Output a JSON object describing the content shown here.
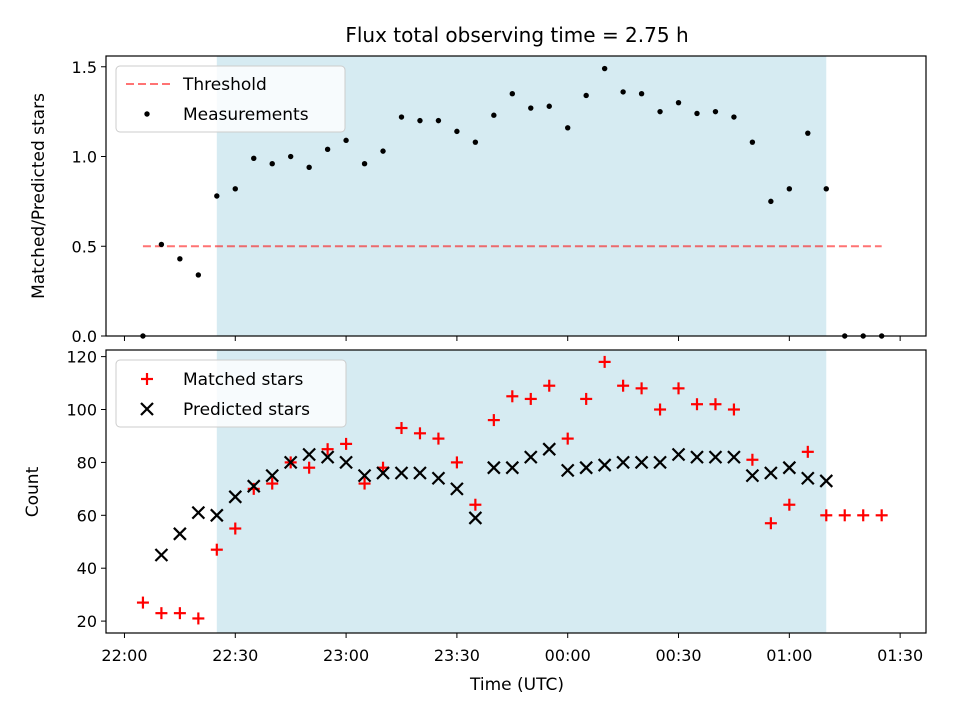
{
  "chart_data": [
    {
      "type": "scatter",
      "title": "Flux total observing time = 2.75 h",
      "ylabel": "Matched/Predicted stars",
      "xlabel": "",
      "ylim": [
        0,
        1.56
      ],
      "yticks": [
        0.0,
        0.5,
        1.0,
        1.5
      ],
      "ytick_labels": [
        "0.0",
        "0.5",
        "1.0",
        "1.5"
      ],
      "x_unit": "minutes after 22:00 UTC",
      "xlim": [
        -5,
        217
      ],
      "xticks": [
        0,
        30,
        60,
        90,
        120,
        150,
        180,
        210
      ],
      "grid": false,
      "legend_placement": "top-left",
      "shaded_interval": {
        "start": 25,
        "end": 190,
        "color": "#add8e6"
      },
      "threshold": {
        "name": "Threshold",
        "value": 0.5,
        "x_start": 5,
        "x_end": 205,
        "color": "#ff6b6b"
      },
      "series": [
        {
          "name": "Measurements",
          "color": "#000000",
          "x": [
            5,
            10,
            15,
            20,
            25,
            30,
            35,
            40,
            45,
            50,
            55,
            60,
            65,
            70,
            75,
            80,
            85,
            90,
            95,
            100,
            105,
            110,
            115,
            120,
            125,
            130,
            135,
            140,
            145,
            150,
            155,
            160,
            165,
            170,
            175,
            180,
            185,
            190,
            195,
            200,
            205
          ],
          "y": [
            0.0,
            0.51,
            0.43,
            0.34,
            0.78,
            0.82,
            0.99,
            0.96,
            1.0,
            0.94,
            1.04,
            1.09,
            0.96,
            1.03,
            1.22,
            1.2,
            1.2,
            1.14,
            1.08,
            1.23,
            1.35,
            1.27,
            1.28,
            1.16,
            1.34,
            1.49,
            1.36,
            1.35,
            1.25,
            1.3,
            1.24,
            1.25,
            1.22,
            1.08,
            0.75,
            0.82,
            1.13,
            0.82,
            0.0,
            0.0,
            0.0
          ]
        }
      ]
    },
    {
      "type": "scatter",
      "title": "",
      "ylabel": "Count",
      "xlabel": "Time (UTC)",
      "ylim": [
        15.5,
        122.5
      ],
      "yticks": [
        20,
        40,
        60,
        80,
        100,
        120
      ],
      "ytick_labels": [
        "20",
        "40",
        "60",
        "80",
        "100",
        "120"
      ],
      "xlim": [
        -5,
        217
      ],
      "xticks": [
        0,
        30,
        60,
        90,
        120,
        150,
        180,
        210
      ],
      "xtick_labels": [
        "22:00",
        "22:30",
        "23:00",
        "23:30",
        "00:00",
        "00:30",
        "01:00",
        "01:30"
      ],
      "grid": false,
      "legend_placement": "top-left",
      "shaded_interval": {
        "start": 25,
        "end": 190,
        "color": "#add8e6"
      },
      "series": [
        {
          "name": "Matched stars",
          "marker": "plus",
          "color": "#ff0000",
          "x": [
            5,
            10,
            15,
            20,
            25,
            30,
            35,
            40,
            45,
            50,
            55,
            60,
            65,
            70,
            75,
            80,
            85,
            90,
            95,
            100,
            105,
            110,
            115,
            120,
            125,
            130,
            135,
            140,
            145,
            150,
            155,
            160,
            165,
            170,
            175,
            180,
            185,
            190,
            195,
            200,
            205
          ],
          "y": [
            27,
            23,
            23,
            21,
            47,
            55,
            70,
            72,
            80,
            78,
            85,
            87,
            72,
            78,
            93,
            91,
            89,
            80,
            64,
            96,
            105,
            104,
            109,
            89,
            104,
            118,
            109,
            108,
            100,
            108,
            102,
            102,
            100,
            81,
            57,
            64,
            84,
            60,
            60,
            60,
            60
          ]
        },
        {
          "name": "Predicted stars",
          "marker": "x",
          "color": "#000000",
          "x": [
            10,
            15,
            20,
            25,
            30,
            35,
            40,
            45,
            50,
            55,
            60,
            65,
            70,
            75,
            80,
            85,
            90,
            95,
            100,
            105,
            110,
            115,
            120,
            125,
            130,
            135,
            140,
            145,
            150,
            155,
            160,
            165,
            170,
            175,
            180,
            185,
            190
          ],
          "y": [
            45,
            53,
            61,
            60,
            67,
            71,
            75,
            80,
            83,
            82,
            80,
            75,
            76,
            76,
            76,
            74,
            70,
            59,
            78,
            78,
            82,
            85,
            77,
            78,
            79,
            80,
            80,
            80,
            83,
            82,
            82,
            82,
            75,
            76,
            78,
            74,
            73
          ]
        }
      ]
    }
  ]
}
